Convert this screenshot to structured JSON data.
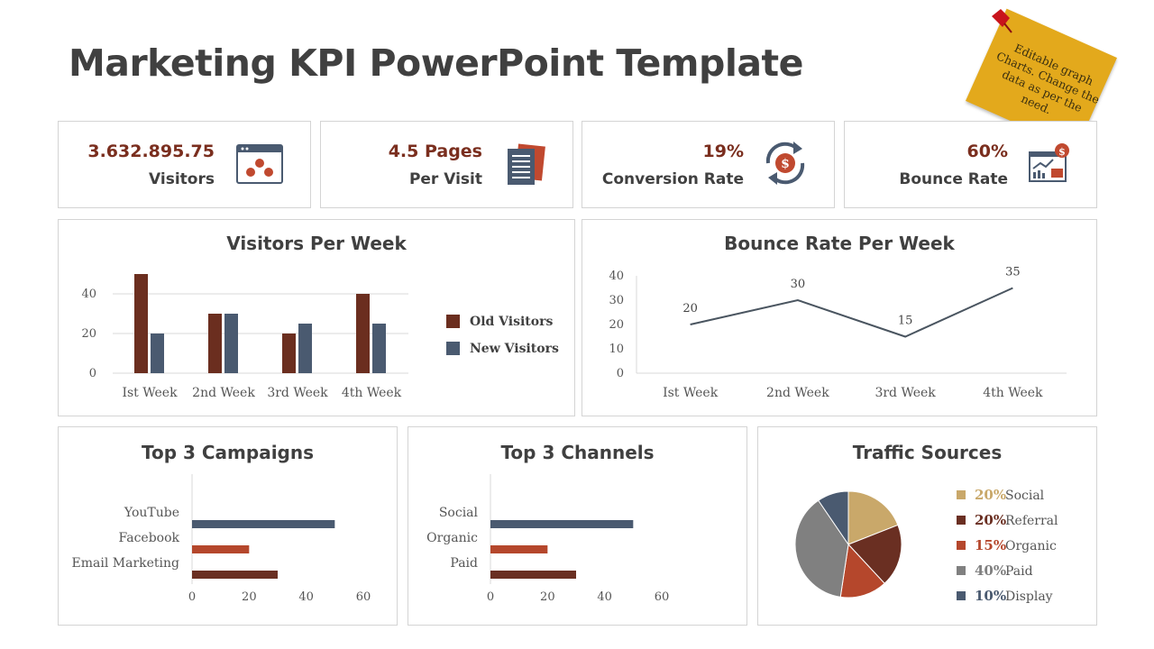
{
  "title": "Marketing KPI PowerPoint Template",
  "sticky_note": "Editable graph Charts. Change the data as per the need.",
  "kpis": [
    {
      "value": "3.632.895.75",
      "label": "Visitors",
      "icon": "visitors-browser-icon",
      "color": "#7a2e1e"
    },
    {
      "value": "4.5 Pages",
      "label": "Per Visit",
      "icon": "document-pages-icon",
      "color": "#7a2e1e"
    },
    {
      "value": "19%",
      "label": "Conversion Rate",
      "icon": "dollar-cycle-icon",
      "color": "#7a2e1e"
    },
    {
      "value": "60%",
      "label": "Bounce Rate",
      "icon": "analytics-dashboard-icon",
      "color": "#7a2e1e"
    }
  ],
  "colors": {
    "dark_red": "#6b2e1f",
    "slate": "#4a5a70",
    "rust": "#b5472c",
    "tan": "#c9a86a",
    "brown": "#6a2f22",
    "gray": "#808080",
    "line": "#4a5560"
  },
  "chart_data": [
    {
      "type": "bar",
      "title": "Visitors Per Week",
      "categories": [
        "Ist Week",
        "2nd Week",
        "3rd Week",
        "4th Week"
      ],
      "series": [
        {
          "name": "Old Visitors",
          "values": [
            50,
            30,
            20,
            40
          ],
          "color": "#6b2e1f"
        },
        {
          "name": "New Visitors",
          "values": [
            20,
            30,
            25,
            25
          ],
          "color": "#4a5a70"
        }
      ],
      "yticks": [
        "0",
        "20",
        "40"
      ],
      "ylim": [
        0,
        50
      ],
      "legend": "right"
    },
    {
      "type": "line",
      "title": "Bounce Rate Per Week",
      "categories": [
        "Ist Week",
        "2nd Week",
        "3rd Week",
        "4th Week"
      ],
      "values": [
        20,
        30,
        15,
        35
      ],
      "labels": [
        "20",
        "30",
        "15",
        "35"
      ],
      "yticks": [
        "0",
        "10",
        "20",
        "30",
        "40"
      ],
      "ylim": [
        0,
        40
      ]
    },
    {
      "type": "bar",
      "orientation": "horizontal",
      "title": "Top 3 Campaigns",
      "categories": [
        "YouTube",
        "Facebook",
        "Email Marketing"
      ],
      "values": [
        50,
        20,
        30
      ],
      "colors": [
        "#4a5a70",
        "#b5472c",
        "#6a2f22"
      ],
      "xticks": [
        "0",
        "20",
        "40",
        "60"
      ],
      "xlim": [
        0,
        60
      ]
    },
    {
      "type": "bar",
      "orientation": "horizontal",
      "title": "Top 3 Channels",
      "categories": [
        "Social",
        "Organic",
        "Paid"
      ],
      "values": [
        50,
        20,
        30
      ],
      "colors": [
        "#4a5a70",
        "#b5472c",
        "#6a2f22"
      ],
      "xticks": [
        "0",
        "20",
        "40",
        "60"
      ],
      "xlim": [
        0,
        60
      ]
    },
    {
      "type": "pie",
      "title": "Traffic Sources",
      "slices": [
        {
          "pct": "20%",
          "name": "Social",
          "value": 20,
          "color": "#c9a86a"
        },
        {
          "pct": "20%",
          "name": "Referral",
          "value": 20,
          "color": "#6a2f22"
        },
        {
          "pct": "15%",
          "name": "Organic",
          "value": 15,
          "color": "#b5472c"
        },
        {
          "pct": "40%",
          "name": "Paid",
          "value": 40,
          "color": "#808080"
        },
        {
          "pct": "10%",
          "name": "Display",
          "value": 10,
          "color": "#4a5a70"
        }
      ],
      "legend": "right"
    }
  ]
}
